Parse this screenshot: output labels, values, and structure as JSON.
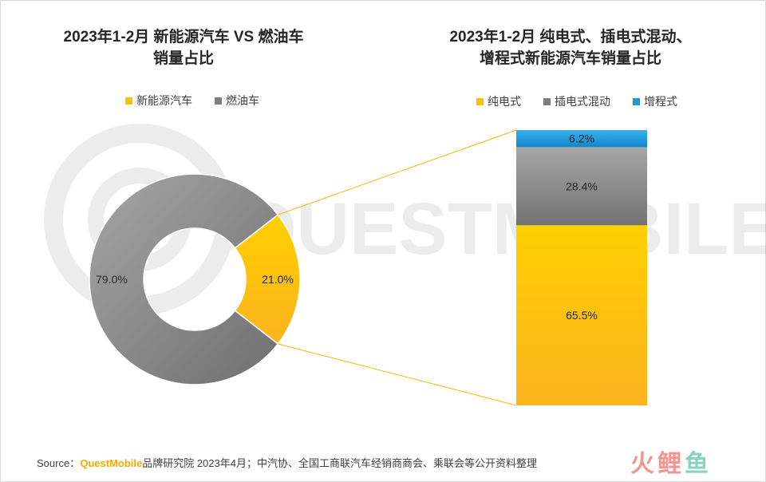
{
  "chart_data": [
    {
      "type": "pie",
      "title": "2023年1-2月 新能源汽车 VS 燃油车",
      "title_line2": "销量占比",
      "legend_placement": "top",
      "categories": [
        "新能源汽车",
        "燃油车"
      ],
      "values": [
        21.0,
        79.0
      ],
      "labels": [
        "21.0%",
        "79.0%"
      ],
      "colors": [
        "#ffc000",
        "#7f7f7f"
      ]
    },
    {
      "type": "bar",
      "stacked": true,
      "title": "2023年1-2月 纯电式、插电式混动、",
      "title_line2": "增程式新能源汽车销量占比",
      "legend_placement": "top",
      "categories": [
        "纯电式",
        "插电式混动",
        "增程式"
      ],
      "values": [
        65.5,
        28.4,
        6.2
      ],
      "labels": [
        "65.5%",
        "28.4%",
        "6.2%"
      ],
      "colors": [
        "#ffc000",
        "#7f7f7f",
        "#1e9ad6"
      ]
    }
  ],
  "watermark": "QUESTMOBILE",
  "source": {
    "prefix": "Source：",
    "brand": "QuestMobile",
    "text": "品牌研究院 2023年4月；中汽协、全国工商联汽车经销商商会、乘联会等公开资料整理"
  },
  "logo": {
    "part1": "火鲤",
    "part2": "鱼"
  }
}
